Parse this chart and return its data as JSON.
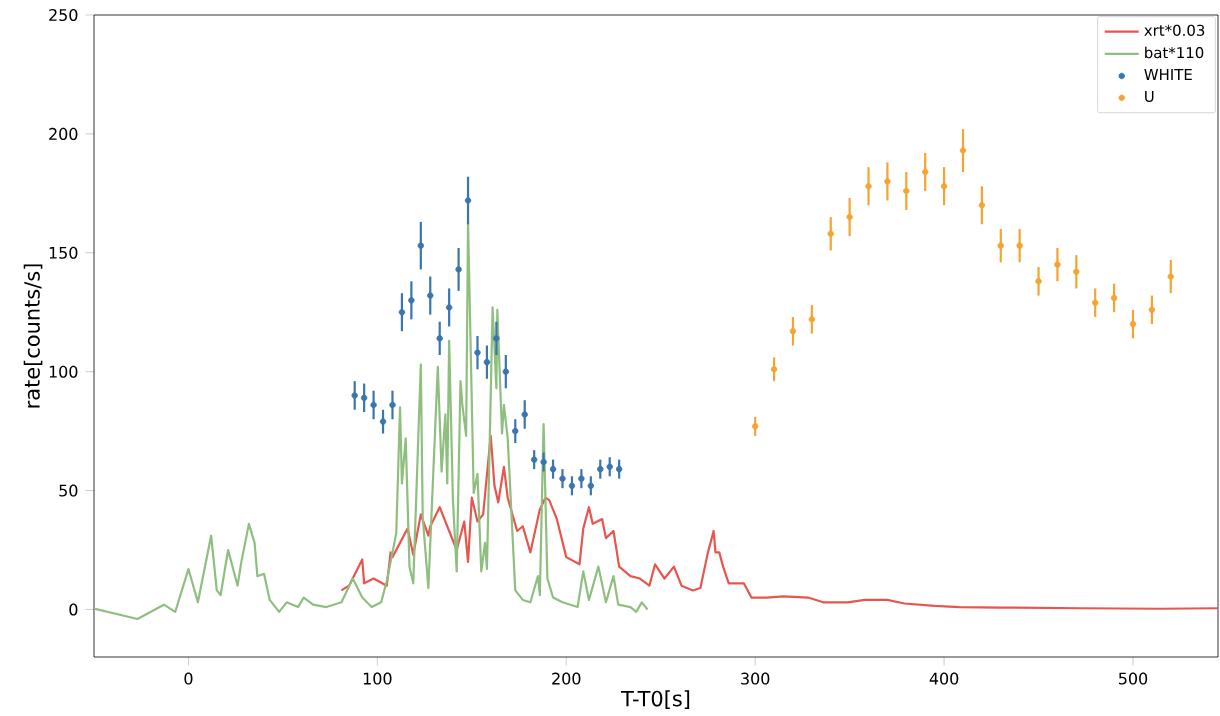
{
  "chart_data": {
    "type": "line",
    "xlabel": "T-T0[s]",
    "ylabel": "rate[counts/s]",
    "xlim": [
      -50,
      545
    ],
    "ylim": [
      -20,
      250
    ],
    "xticks": [
      0,
      100,
      200,
      300,
      400,
      500
    ],
    "yticks": [
      0,
      50,
      100,
      150,
      200,
      250
    ],
    "legend": "top right",
    "grid": false,
    "series": [
      {
        "name": "xrt*0.03",
        "color": "#e8554e",
        "marker": "none",
        "x": [
          81,
          85,
          92,
          93,
          98,
          105,
          107,
          108,
          116,
          119,
          123,
          127,
          128,
          133,
          138,
          142,
          146,
          148,
          150,
          153,
          156,
          160,
          162,
          164,
          167,
          169,
          174,
          177,
          181,
          186,
          189,
          191,
          195,
          200,
          207,
          209,
          212,
          214,
          219,
          221,
          225,
          228,
          234,
          239,
          244,
          247,
          252,
          257,
          261,
          267,
          271,
          275,
          278,
          279,
          281,
          283,
          286,
          294,
          298,
          306,
          315,
          328,
          336,
          349,
          358,
          370,
          379,
          395,
          408,
          430,
          472,
          514,
          545
        ],
        "values": [
          8,
          10,
          21,
          11,
          13,
          10,
          24,
          22,
          34,
          23,
          40,
          31,
          35,
          43,
          33,
          25,
          37,
          20,
          47,
          37,
          40,
          73,
          52,
          45,
          60,
          47,
          33,
          35,
          24,
          42,
          47,
          46,
          38,
          22,
          19,
          34,
          43,
          36,
          38,
          30,
          33,
          18,
          14,
          13,
          10,
          19,
          13,
          18,
          10,
          8,
          9,
          24,
          33,
          24,
          24,
          18,
          11,
          11,
          5,
          5,
          5.5,
          5,
          3,
          3,
          4,
          4,
          2.5,
          1.5,
          1,
          0.8,
          0.5,
          0.3,
          0.5
        ]
      },
      {
        "name": "bat*110",
        "color": "#8fbf7f",
        "marker": "none",
        "x": [
          -50,
          -27,
          -13,
          -7,
          0,
          5,
          12,
          15,
          17,
          21,
          26,
          28,
          32,
          35,
          36.5,
          40,
          43,
          48,
          52,
          58,
          61,
          66,
          73,
          81,
          87,
          92,
          97,
          102,
          105,
          110,
          112,
          113,
          115,
          117,
          119,
          123,
          124,
          127,
          132,
          134,
          136,
          137,
          138,
          140,
          142,
          144,
          145,
          147,
          148,
          151,
          153,
          155,
          157,
          158,
          161,
          163,
          163.5,
          166,
          167,
          169,
          173,
          177,
          181,
          185,
          186,
          188,
          190,
          193,
          198,
          206,
          209,
          212,
          217,
          221,
          225,
          227.5,
          234,
          237,
          240,
          243
        ],
        "values": [
          0.4,
          -4,
          2,
          -1,
          17,
          3,
          31,
          8,
          6,
          25,
          10,
          20,
          36,
          28,
          14,
          15,
          4,
          -1,
          3,
          1,
          5,
          2,
          1,
          3,
          13,
          5,
          1,
          3,
          12,
          32,
          85,
          53,
          72,
          18,
          11,
          103,
          39,
          9,
          102,
          58,
          82,
          53,
          113,
          46,
          16,
          96,
          86,
          73,
          163,
          49,
          57,
          16,
          28,
          17,
          127,
          93,
          126,
          74,
          86,
          72,
          8,
          4,
          3,
          14,
          6,
          78,
          13,
          5,
          3,
          1,
          16,
          4,
          18,
          3,
          14,
          2,
          1,
          -1,
          3,
          0
        ]
      },
      {
        "name": "WHITE",
        "type": "scatter",
        "color": "#3a75b0",
        "marker": "circle",
        "x": [
          88,
          93,
          98,
          103,
          108,
          113,
          118,
          123,
          128,
          133,
          138,
          143,
          148,
          153,
          158,
          163,
          168,
          173,
          178,
          183,
          188,
          193,
          198,
          203,
          208,
          213,
          218,
          223,
          228
        ],
        "values": [
          90,
          89,
          86,
          79,
          86,
          125,
          130,
          153,
          132,
          114,
          127,
          143,
          172,
          108,
          104,
          114,
          100,
          75,
          82,
          63,
          62,
          59,
          55,
          52,
          55,
          52,
          59,
          60,
          59
        ],
        "errors": [
          6,
          6,
          6,
          5,
          6,
          8,
          8,
          10,
          8,
          7,
          8,
          9,
          10,
          7,
          7,
          7,
          7,
          5,
          6,
          4,
          4,
          4,
          4,
          4,
          4,
          4,
          4,
          4,
          4
        ]
      },
      {
        "name": "U",
        "type": "scatter",
        "color": "#f5a431",
        "marker": "circle",
        "x": [
          300,
          310,
          320,
          330,
          340,
          350,
          360,
          370,
          380,
          390,
          400,
          410,
          420,
          430,
          440,
          450,
          460,
          470,
          480,
          490,
          500,
          510,
          520
        ],
        "values": [
          77,
          101,
          117,
          122,
          158,
          165,
          178,
          180,
          176,
          184,
          178,
          193,
          170,
          153,
          153,
          138,
          145,
          142,
          129,
          131,
          120,
          126,
          140
        ],
        "errors": [
          4,
          5,
          6,
          6,
          7,
          8,
          8,
          8,
          8,
          8,
          8,
          9,
          8,
          7,
          7,
          6,
          7,
          7,
          6,
          6,
          6,
          6,
          7
        ]
      }
    ]
  }
}
